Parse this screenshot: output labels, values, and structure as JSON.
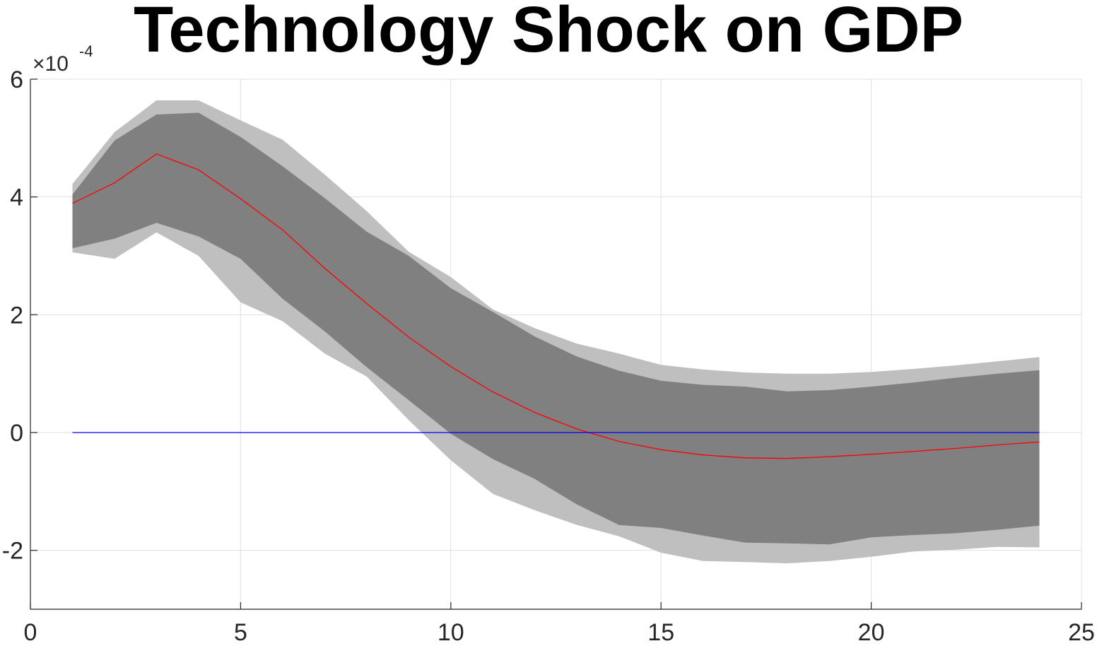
{
  "chart_data": {
    "type": "area",
    "title": "Technology Shock on GDP",
    "xlabel": "",
    "ylabel": "",
    "y_exponent_base": "×10",
    "y_exponent_power": "-4",
    "xlim": [
      0,
      25
    ],
    "ylim": [
      -3,
      6
    ],
    "x_ticks": [
      0,
      5,
      10,
      15,
      20,
      25
    ],
    "x_tick_labels": [
      "0",
      "5",
      "10",
      "15",
      "20",
      "25"
    ],
    "y_ticks": [
      -2,
      0,
      2,
      4,
      6
    ],
    "y_tick_labels": [
      "-2",
      "0",
      "2",
      "4",
      "6"
    ],
    "grid": true,
    "x": [
      1,
      2,
      3,
      4,
      5,
      6,
      7,
      8,
      9,
      10,
      11,
      12,
      13,
      14,
      15,
      16,
      17,
      18,
      19,
      20,
      21,
      22,
      23,
      24
    ],
    "bands": [
      {
        "level": "outer",
        "color": "#bfbfbf",
        "upper": [
          4.22,
          5.1,
          5.64,
          5.64,
          5.3,
          4.97,
          4.38,
          3.76,
          3.07,
          2.64,
          2.09,
          1.77,
          1.51,
          1.34,
          1.15,
          1.07,
          1.02,
          1.0,
          1.0,
          1.03,
          1.08,
          1.14,
          1.21,
          1.28
        ],
        "lower": [
          3.06,
          2.95,
          3.4,
          3.0,
          2.21,
          1.89,
          1.34,
          0.95,
          0.21,
          -0.47,
          -1.04,
          -1.32,
          -1.57,
          -1.76,
          -2.04,
          -2.18,
          -2.2,
          -2.22,
          -2.18,
          -2.11,
          -2.02,
          -1.99,
          -1.94,
          -1.95
        ]
      },
      {
        "level": "inner",
        "color": "#808080",
        "upper": [
          4.04,
          4.96,
          5.4,
          5.43,
          5.02,
          4.52,
          3.98,
          3.41,
          3.0,
          2.45,
          2.05,
          1.63,
          1.29,
          1.05,
          0.88,
          0.81,
          0.78,
          0.7,
          0.72,
          0.78,
          0.85,
          0.93,
          1.0,
          1.06
        ],
        "lower": [
          3.13,
          3.29,
          3.56,
          3.33,
          2.95,
          2.27,
          1.72,
          1.11,
          0.55,
          -0.02,
          -0.45,
          -0.79,
          -1.22,
          -1.57,
          -1.62,
          -1.75,
          -1.87,
          -1.88,
          -1.9,
          -1.78,
          -1.74,
          -1.71,
          -1.65,
          -1.58
        ]
      }
    ],
    "series": [
      {
        "color": "#ff0000",
        "values": [
          3.89,
          4.24,
          4.73,
          4.46,
          3.97,
          3.44,
          2.79,
          2.19,
          1.62,
          1.12,
          0.69,
          0.34,
          0.06,
          -0.15,
          -0.29,
          -0.38,
          -0.43,
          -0.44,
          -0.41,
          -0.37,
          -0.32,
          -0.27,
          -0.21,
          -0.16
        ]
      },
      {
        "color": "#0000ff",
        "values": [
          0,
          0,
          0,
          0,
          0,
          0,
          0,
          0,
          0,
          0,
          0,
          0,
          0,
          0,
          0,
          0,
          0,
          0,
          0,
          0,
          0,
          0,
          0,
          0
        ]
      }
    ]
  }
}
